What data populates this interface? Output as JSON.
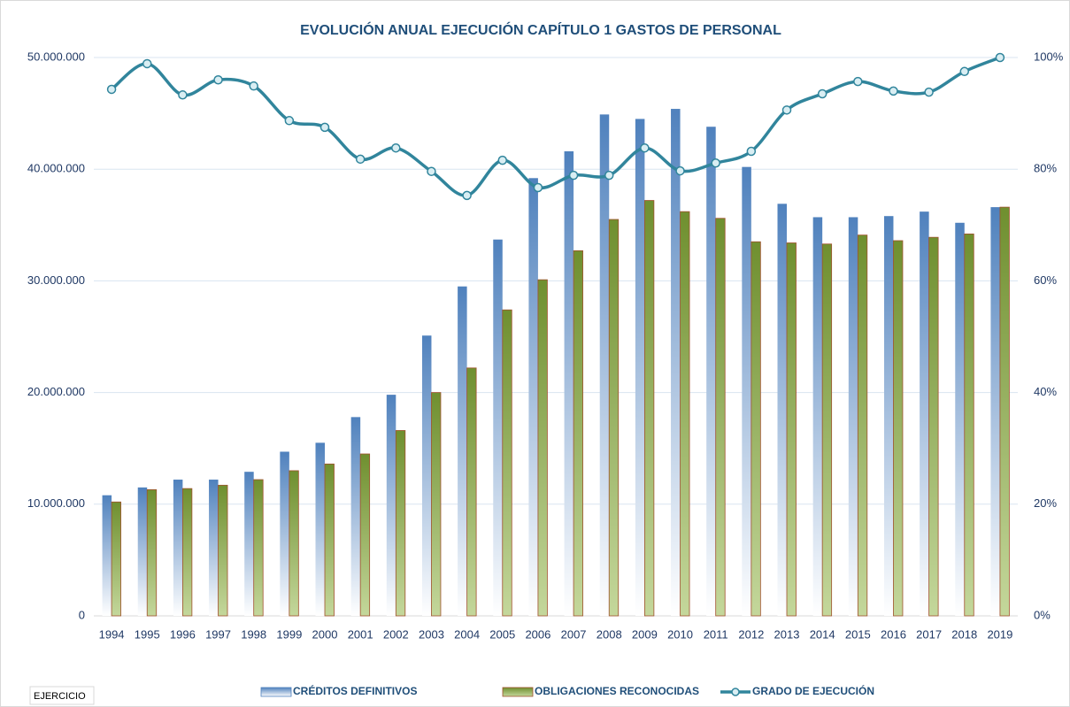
{
  "chart_data": {
    "type": "bar-line",
    "title": "EVOLUCIÓN ANUAL EJECUCIÓN CAPÍTULO 1 GASTOS DE PERSONAL",
    "note": "EJERCICIO",
    "categories": [
      "1994",
      "1995",
      "1996",
      "1997",
      "1998",
      "1999",
      "2000",
      "2001",
      "2002",
      "2003",
      "2004",
      "2005",
      "2006",
      "2007",
      "2008",
      "2009",
      "2010",
      "2011",
      "2012",
      "2013",
      "2014",
      "2015",
      "2016",
      "2017",
      "2018",
      "2019"
    ],
    "series": [
      {
        "name": "CRÉDITOS DEFINITIVOS",
        "type": "bar",
        "color": "#4f81bd",
        "values": [
          10800000,
          11500000,
          12200000,
          12200000,
          12900000,
          14700000,
          15500000,
          17800000,
          19800000,
          25100000,
          29500000,
          33700000,
          39200000,
          41600000,
          44900000,
          44500000,
          45400000,
          43800000,
          40200000,
          36900000,
          35700000,
          35700000,
          35800000,
          36200000,
          35200000,
          36600000
        ]
      },
      {
        "name": "OBLIGACIONES RECONOCIDAS",
        "type": "bar",
        "color": "#77933c",
        "values": [
          10200000,
          11300000,
          11400000,
          11700000,
          12200000,
          13000000,
          13600000,
          14500000,
          16600000,
          20000000,
          22200000,
          27400000,
          30100000,
          32700000,
          35500000,
          37200000,
          36200000,
          35600000,
          33500000,
          33400000,
          33300000,
          34100000,
          33600000,
          33900000,
          34200000,
          36600000
        ]
      },
      {
        "name": "GRADO DE EJECUCIÓN",
        "type": "line",
        "axis": "y2",
        "color": "#31859c",
        "values": [
          94.3,
          98.9,
          93.3,
          96.0,
          94.9,
          88.7,
          87.5,
          81.8,
          83.8,
          79.6,
          75.3,
          81.6,
          76.7,
          78.9,
          78.9,
          83.8,
          79.7,
          81.1,
          83.2,
          90.6,
          93.5,
          95.7,
          94.0,
          93.8,
          97.5,
          100
        ]
      }
    ],
    "ylim": [
      0,
      50000000
    ],
    "yticks": [
      0,
      {
        "value": 10000000,
        "label": "10.000.000"
      },
      {
        "value": 20000000,
        "label": "20.000.000"
      },
      {
        "value": 30000000,
        "label": "30.000.000"
      },
      {
        "value": 40000000,
        "label": "40.000.000"
      },
      {
        "value": 50000000,
        "label": "50.000.000"
      }
    ],
    "y2lim": [
      0,
      100
    ],
    "y2ticks": [
      {
        "value": 0,
        "label": "0%"
      },
      {
        "value": 20,
        "label": "20%"
      },
      {
        "value": 40,
        "label": "40%"
      },
      {
        "value": 60,
        "label": "60%"
      },
      {
        "value": 80,
        "label": "80%"
      },
      {
        "value": 100,
        "label": "100%"
      }
    ],
    "grid": true,
    "legend": "bottom"
  }
}
